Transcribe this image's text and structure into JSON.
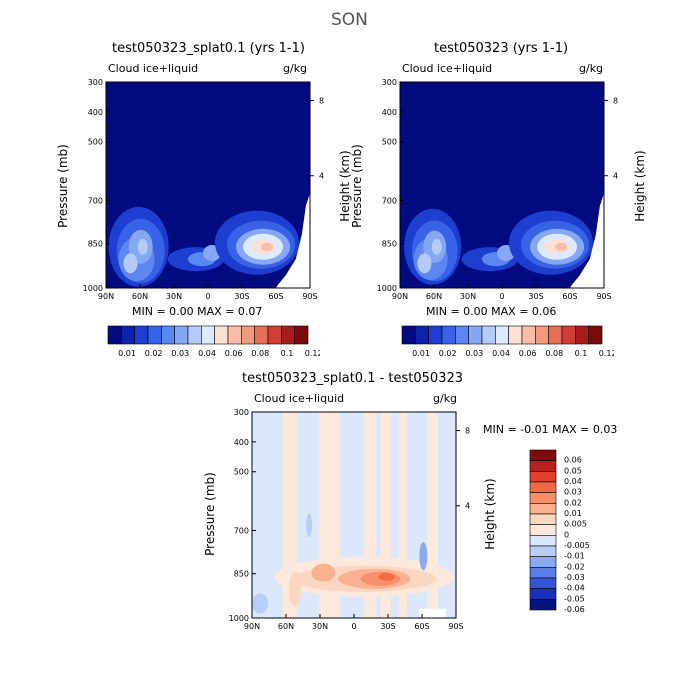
{
  "figure": {
    "season": "SON"
  },
  "panels": [
    {
      "title": "test050323_splat0.1 (yrs 1-1)",
      "field": "Cloud ice+liquid",
      "units": "g/kg",
      "ylabel_left": "Pressure (mb)",
      "ylabel_right": "Height (km)",
      "stats": "MIN =    0.00    MAX =    0.07"
    },
    {
      "title": "test050323 (yrs 1-1)",
      "field": "Cloud ice+liquid",
      "units": "g/kg",
      "ylabel_left": "Pressure (mb)",
      "ylabel_right": "Height (km)",
      "stats": "MIN =    0.00    MAX =    0.06"
    },
    {
      "title": "test050323_splat0.1 - test050323",
      "field": "Cloud ice+liquid",
      "units": "g/kg",
      "ylabel_left": "Pressure (mb)",
      "ylabel_right": "Height (km)",
      "stats": "MIN =   -0.01    MAX =    0.03"
    }
  ],
  "chart_data": [
    {
      "type": "heatmap",
      "title": "test050323_splat0.1 (yrs 1-1)",
      "x_ticks": [
        "90N",
        "60N",
        "30N",
        "0",
        "30S",
        "60S",
        "90S"
      ],
      "y_ticks": [
        "300",
        "400",
        "500",
        "700",
        "850",
        "1000"
      ],
      "y_right_ticks": [
        "8",
        "4"
      ],
      "min": 0.0,
      "max": 0.07,
      "colorbar": [
        "0.01",
        "0.02",
        "0.03",
        "0.04",
        "0.06",
        "0.08",
        "0.1",
        "0.12"
      ]
    },
    {
      "type": "heatmap",
      "title": "test050323 (yrs 1-1)",
      "x_ticks": [
        "90N",
        "60N",
        "30N",
        "0",
        "30S",
        "60S",
        "90S"
      ],
      "y_ticks": [
        "300",
        "400",
        "500",
        "700",
        "850",
        "1000"
      ],
      "y_right_ticks": [
        "8",
        "4"
      ],
      "min": 0.0,
      "max": 0.06,
      "colorbar": [
        "0.01",
        "0.02",
        "0.03",
        "0.04",
        "0.06",
        "0.08",
        "0.1",
        "0.12"
      ]
    },
    {
      "type": "heatmap",
      "title": "test050323_splat0.1 - test050323",
      "x_ticks": [
        "90N",
        "60N",
        "30N",
        "0",
        "30S",
        "60S",
        "90S"
      ],
      "y_ticks": [
        "300",
        "400",
        "500",
        "700",
        "850",
        "1000"
      ],
      "y_right_ticks": [
        "8",
        "4"
      ],
      "min": -0.01,
      "max": 0.03,
      "colorbar": [
        "0.06",
        "0.05",
        "0.04",
        "0.03",
        "0.02",
        "0.01",
        "0.005",
        "0",
        "-0.005",
        "-0.01",
        "-0.02",
        "-0.03",
        "-0.04",
        "-0.05",
        "-0.06"
      ]
    }
  ],
  "colors": {
    "abs_palette": [
      "#020b80",
      "#0a23a8",
      "#1c3fd0",
      "#3a62e6",
      "#5c86f0",
      "#86a8f4",
      "#b4cbf8",
      "#ddeafc",
      "#fde0d2",
      "#f8bda6",
      "#f09a7e",
      "#e4705a",
      "#cf3f35",
      "#a81c1c",
      "#7a0b0b"
    ],
    "diff_palette": [
      "#7e0c0c",
      "#b5221b",
      "#e0402a",
      "#f26a44",
      "#f6906a",
      "#f9b190",
      "#fbd6c0",
      "#fde9dc",
      "#dbe8fb",
      "#b8cef6",
      "#8aa9ef",
      "#5a7fe6",
      "#3355d6",
      "#1730b4",
      "#06157e"
    ]
  }
}
